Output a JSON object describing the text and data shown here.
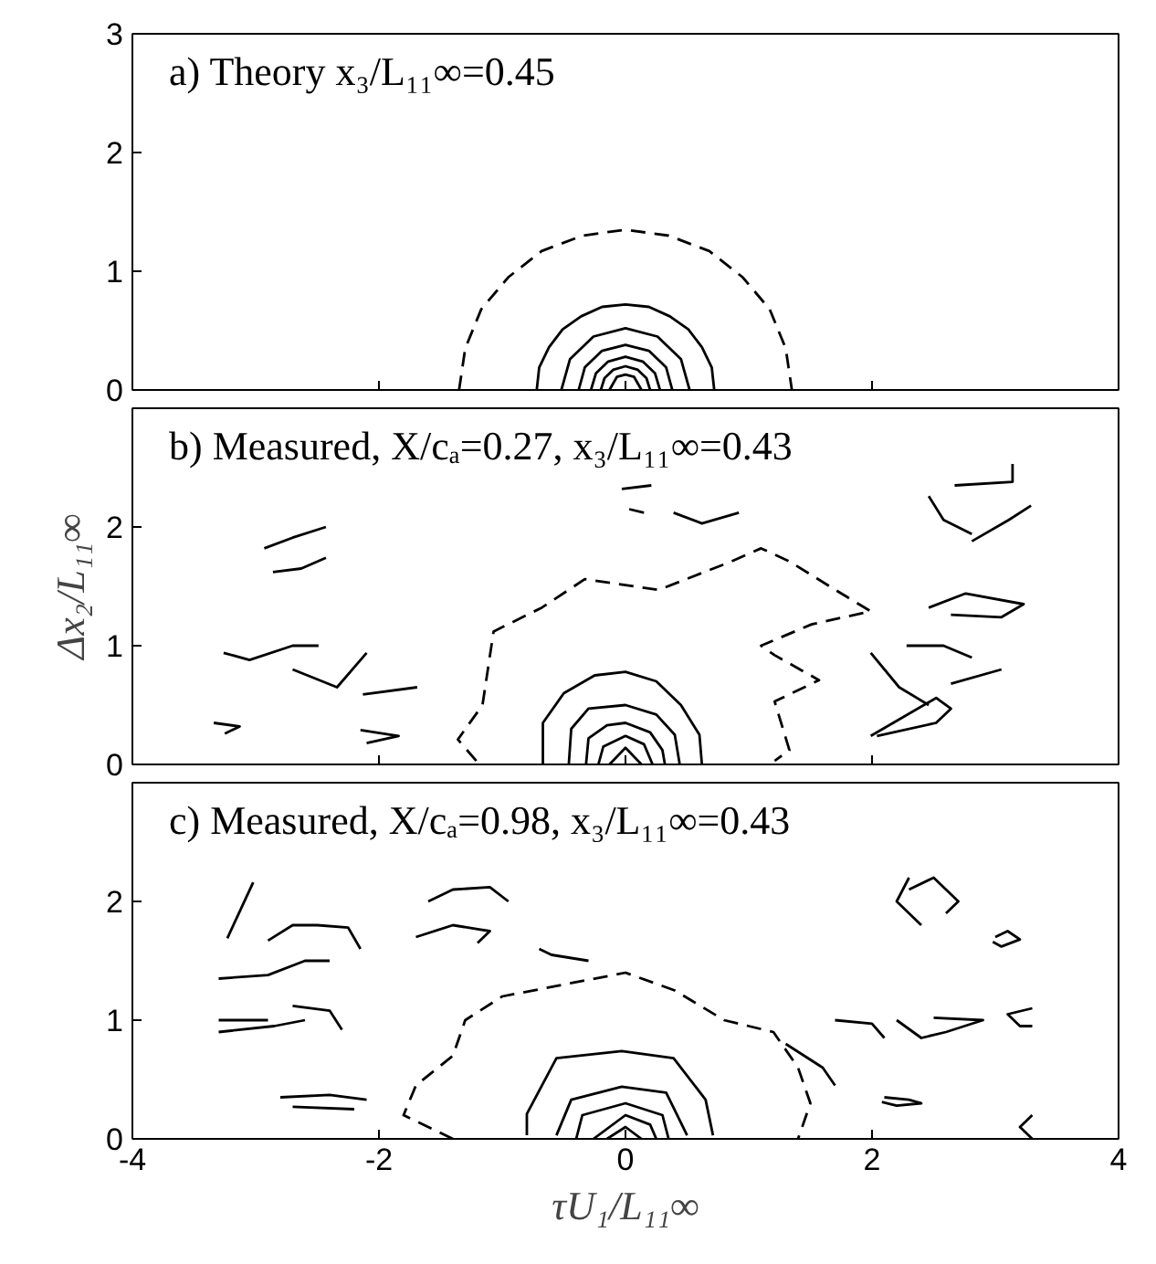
{
  "chart_data": [
    {
      "type": "line",
      "title": "a) Theory x₃/L₁₁∞=0.45",
      "xlim": [
        -4,
        4
      ],
      "xticks": [
        -4,
        -2,
        0,
        2,
        4
      ],
      "ylim": [
        0,
        3
      ],
      "yticks": [
        0,
        1,
        2,
        3
      ],
      "tick_labels": "y",
      "marker": "none",
      "grid": false,
      "series": [
        {
          "color": "#000000",
          "line_style": "dashed",
          "x": [
            -1.35,
            -1.3,
            -1.17,
            -0.95,
            -0.68,
            -0.35,
            0,
            0.35,
            0.68,
            0.95,
            1.17,
            1.3,
            1.35
          ],
          "values": [
            0,
            0.35,
            0.68,
            0.95,
            1.17,
            1.3,
            1.35,
            1.3,
            1.17,
            0.95,
            0.68,
            0.35,
            0
          ]
        },
        {
          "color": "#000000",
          "x": [
            -0.72,
            -0.7,
            -0.62,
            -0.51,
            -0.36,
            -0.19,
            0,
            0.19,
            0.36,
            0.51,
            0.62,
            0.7,
            0.72
          ],
          "values": [
            0,
            0.19,
            0.36,
            0.51,
            0.62,
            0.7,
            0.72,
            0.7,
            0.62,
            0.51,
            0.36,
            0.19,
            0
          ]
        },
        {
          "color": "#000000",
          "x": [
            -0.52,
            -0.45,
            -0.26,
            0,
            0.26,
            0.45,
            0.52
          ],
          "values": [
            0,
            0.26,
            0.45,
            0.52,
            0.45,
            0.26,
            0
          ]
        },
        {
          "color": "#000000",
          "x": [
            -0.38,
            -0.33,
            -0.19,
            0,
            0.19,
            0.33,
            0.38
          ],
          "values": [
            0,
            0.19,
            0.33,
            0.38,
            0.33,
            0.19,
            0
          ]
        },
        {
          "color": "#000000",
          "x": [
            -0.28,
            -0.24,
            -0.14,
            0,
            0.14,
            0.24,
            0.28
          ],
          "values": [
            0,
            0.14,
            0.24,
            0.28,
            0.24,
            0.14,
            0
          ]
        },
        {
          "color": "#000000",
          "x": [
            -0.2,
            -0.17,
            -0.1,
            0,
            0.1,
            0.17,
            0.2
          ],
          "values": [
            0,
            0.1,
            0.17,
            0.2,
            0.17,
            0.1,
            0
          ]
        },
        {
          "color": "#000000",
          "x": [
            -0.13,
            -0.07,
            0,
            0.07,
            0.13
          ],
          "values": [
            0,
            0.11,
            0.13,
            0.11,
            0
          ]
        }
      ]
    },
    {
      "type": "line",
      "title": "b) Measured, X/cₐ=0.27, x₃/L₁₁∞=0.43",
      "ylabel": "Δx₂/L₁₁∞",
      "xlim": [
        -4,
        4
      ],
      "xticks": [
        -4,
        -2,
        0,
        2,
        4
      ],
      "ylim": [
        0,
        3
      ],
      "yticks": [
        0,
        1,
        2
      ],
      "tick_labels": "y",
      "marker": "none",
      "grid": false,
      "series": [
        {
          "color": "#000000",
          "x": [
            -0.67,
            -0.67,
            -0.5,
            -0.25,
            0,
            0.25,
            0.45,
            0.6,
            0.62
          ],
          "values": [
            0,
            0.35,
            0.6,
            0.75,
            0.78,
            0.7,
            0.5,
            0.25,
            0
          ]
        },
        {
          "color": "#000000",
          "x": [
            -0.46,
            -0.44,
            -0.3,
            0,
            0.25,
            0.4,
            0.44
          ],
          "values": [
            0,
            0.3,
            0.47,
            0.5,
            0.42,
            0.25,
            0
          ]
        },
        {
          "color": "#000000",
          "x": [
            -0.32,
            -0.3,
            -0.15,
            0,
            0.2,
            0.3,
            0.32
          ],
          "values": [
            0,
            0.22,
            0.33,
            0.35,
            0.27,
            0.12,
            0
          ]
        },
        {
          "color": "#000000",
          "x": [
            -0.22,
            -0.18,
            0,
            0.15,
            0.22
          ],
          "values": [
            0,
            0.15,
            0.24,
            0.17,
            0
          ]
        },
        {
          "color": "#000000",
          "x": [
            -0.13,
            0,
            0.13
          ],
          "values": [
            0,
            0.14,
            0
          ]
        },
        {
          "color": "#000000",
          "line_style": "dashed",
          "x": [
            -1.21,
            -1.36,
            -1.16,
            -1.07,
            -0.68,
            -0.33,
            0.27,
            0.86,
            1.1,
            1.33,
            1.75,
            1.99,
            1.51,
            1.1,
            1.21,
            1.57,
            1.21,
            1.33,
            1.21
          ],
          "values": [
            0.03,
            0.21,
            0.5,
            1.12,
            1.32,
            1.56,
            1.47,
            1.71,
            1.82,
            1.71,
            1.44,
            1.29,
            1.18,
            1.0,
            0.92,
            0.71,
            0.53,
            0.12,
            0.03
          ]
        },
        {
          "color": "#000000",
          "x": [
            -2.93,
            -2.7,
            -2.43
          ],
          "values": [
            1.82,
            1.91,
            2.0
          ]
        },
        {
          "color": "#000000",
          "x": [
            -2.86,
            -2.63,
            -2.43
          ],
          "values": [
            1.62,
            1.65,
            1.74
          ]
        },
        {
          "color": "#000000",
          "x": [
            -3.26,
            -3.05,
            -2.7,
            -2.49
          ],
          "values": [
            0.94,
            0.88,
            1.0,
            1.0
          ]
        },
        {
          "color": "#000000",
          "x": [
            -2.7,
            -2.34,
            -2.1
          ],
          "values": [
            0.8,
            0.65,
            0.94
          ]
        },
        {
          "color": "#000000",
          "x": [
            -2.13,
            -1.69
          ],
          "values": [
            0.59,
            0.65
          ]
        },
        {
          "color": "#000000",
          "x": [
            -3.34,
            -3.13,
            -3.25
          ],
          "values": [
            0.35,
            0.32,
            0.26
          ]
        },
        {
          "color": "#000000",
          "x": [
            -2.15,
            -1.84,
            -2.1
          ],
          "values": [
            0.29,
            0.24,
            0.18
          ]
        },
        {
          "color": "#000000",
          "x": [
            2.67,
            3.14,
            3.14
          ],
          "values": [
            2.35,
            2.38,
            2.53
          ]
        },
        {
          "color": "#000000",
          "x": [
            2.46,
            2.58,
            2.81
          ],
          "values": [
            2.26,
            2.06,
            1.94
          ]
        },
        {
          "color": "#000000",
          "x": [
            2.81,
            3.11,
            3.29
          ],
          "values": [
            1.88,
            2.06,
            2.18
          ]
        },
        {
          "color": "#000000",
          "x": [
            2.46,
            2.76,
            3.23,
            3.05,
            2.64
          ],
          "values": [
            1.32,
            1.44,
            1.35,
            1.24,
            1.26
          ]
        },
        {
          "color": "#000000",
          "x": [
            2.28,
            2.58,
            2.81
          ],
          "values": [
            1.0,
            1.0,
            0.9
          ]
        },
        {
          "color": "#000000",
          "x": [
            1.99,
            2.22,
            2.46
          ],
          "values": [
            0.94,
            0.65,
            0.5
          ]
        },
        {
          "color": "#000000",
          "x": [
            2.64,
            3.05
          ],
          "values": [
            0.68,
            0.8
          ]
        },
        {
          "color": "#000000",
          "x": [
            1.99,
            2.52,
            2.64,
            2.52,
            2.04
          ],
          "values": [
            0.24,
            0.56,
            0.47,
            0.35,
            0.24
          ]
        },
        {
          "color": "#000000",
          "x": [
            -0.03,
            0.21
          ],
          "values": [
            2.32,
            2.35
          ]
        },
        {
          "color": "#000000",
          "x": [
            0.03,
            0.15
          ],
          "values": [
            2.15,
            2.12
          ]
        },
        {
          "color": "#000000",
          "x": [
            0.39,
            0.62,
            0.92
          ],
          "values": [
            2.12,
            2.03,
            2.12
          ]
        }
      ]
    },
    {
      "type": "line",
      "title": "c) Measured, X/cₐ=0.98, x₃/L₁₁∞=0.43",
      "xlabel": "τU₁/L₁₁∞",
      "xlim": [
        -4,
        4
      ],
      "xticks": [
        -4,
        -2,
        0,
        2,
        4
      ],
      "ylim": [
        0,
        3
      ],
      "yticks": [
        0,
        1,
        2
      ],
      "marker": "none",
      "grid": false,
      "series": [
        {
          "color": "#000000",
          "x": [
            -0.8,
            -0.8,
            -0.56,
            -0.03,
            0.39,
            0.65,
            0.71
          ],
          "values": [
            0.03,
            0.21,
            0.68,
            0.74,
            0.68,
            0.33,
            0.03
          ]
        },
        {
          "color": "#000000",
          "x": [
            -0.56,
            -0.44,
            -0.03,
            0.33,
            0.5
          ],
          "values": [
            0.03,
            0.33,
            0.44,
            0.39,
            0.03
          ]
        },
        {
          "color": "#000000",
          "x": [
            -0.4,
            -0.35,
            0,
            0.3,
            0.35
          ],
          "values": [
            0,
            0.2,
            0.3,
            0.2,
            0
          ]
        },
        {
          "color": "#000000",
          "x": [
            -0.26,
            0,
            0.2,
            0.25
          ],
          "values": [
            0,
            0.2,
            0.12,
            0
          ]
        },
        {
          "color": "#000000",
          "x": [
            -0.15,
            0,
            0.13
          ],
          "values": [
            0,
            0.1,
            0
          ]
        },
        {
          "color": "#000000",
          "line_style": "dashed",
          "x": [
            -1.4,
            -1.8,
            -1.7,
            -1.4,
            -1.3,
            -1.0,
            -0.5,
            0,
            0.4,
            0.8,
            1.2,
            1.4,
            1.5,
            1.4
          ],
          "values": [
            0,
            0.2,
            0.45,
            0.7,
            1.0,
            1.2,
            1.3,
            1.4,
            1.25,
            1.0,
            0.9,
            0.6,
            0.3,
            0
          ]
        },
        {
          "color": "#000000",
          "x": [
            -3.3,
            -2.9,
            -2.6,
            -2.4
          ],
          "values": [
            1.35,
            1.38,
            1.5,
            1.5
          ]
        },
        {
          "color": "#000000",
          "x": [
            -3.3,
            -2.9
          ],
          "values": [
            1.0,
            1.0
          ]
        },
        {
          "color": "#000000",
          "x": [
            -3.3,
            -2.85,
            -2.6
          ],
          "values": [
            0.9,
            0.95,
            1.0
          ]
        },
        {
          "color": "#000000",
          "x": [
            -2.7,
            -2.4,
            -2.3
          ],
          "values": [
            1.12,
            1.08,
            0.92
          ]
        },
        {
          "color": "#000000",
          "x": [
            -3.23,
            -3.02
          ],
          "values": [
            1.69,
            2.16
          ]
        },
        {
          "color": "#000000",
          "x": [
            -2.9,
            -2.7,
            -2.5,
            -2.25,
            -2.15
          ],
          "values": [
            1.67,
            1.8,
            1.8,
            1.78,
            1.6
          ]
        },
        {
          "color": "#000000",
          "x": [
            -2.8,
            -2.4,
            -2.1
          ],
          "values": [
            0.35,
            0.37,
            0.33
          ]
        },
        {
          "color": "#000000",
          "x": [
            -2.7,
            -2.2
          ],
          "values": [
            0.27,
            0.25
          ]
        },
        {
          "color": "#000000",
          "x": [
            -1.6,
            -1.4,
            -1.1,
            -0.95
          ],
          "values": [
            2.0,
            2.1,
            2.12,
            2.0
          ]
        },
        {
          "color": "#000000",
          "x": [
            -1.7,
            -1.4,
            -1.1,
            -1.2
          ],
          "values": [
            1.7,
            1.8,
            1.75,
            1.65
          ]
        },
        {
          "color": "#000000",
          "x": [
            -0.7,
            -0.6,
            -0.3
          ],
          "values": [
            1.6,
            1.55,
            1.5
          ]
        },
        {
          "color": "#000000",
          "x": [
            2.3,
            2.5,
            2.7,
            2.6
          ],
          "values": [
            2.1,
            2.2,
            2.0,
            1.9
          ]
        },
        {
          "color": "#000000",
          "x": [
            2.3,
            2.2,
            2.4
          ],
          "values": [
            2.2,
            2.0,
            1.8
          ]
        },
        {
          "color": "#000000",
          "x": [
            3.0,
            3.1,
            3.2,
            3.05,
            2.98
          ],
          "values": [
            1.7,
            1.75,
            1.68,
            1.62,
            1.66
          ]
        },
        {
          "color": "#000000",
          "x": [
            2.2,
            2.4,
            2.6,
            2.9,
            2.5
          ],
          "values": [
            1.0,
            0.85,
            0.9,
            1.0,
            1.02
          ]
        },
        {
          "color": "#000000",
          "x": [
            2.1,
            2.3,
            2.4,
            2.2,
            2.08
          ],
          "values": [
            0.35,
            0.33,
            0.3,
            0.28,
            0.31
          ]
        },
        {
          "color": "#000000",
          "x": [
            3.3,
            3.2,
            3.3
          ],
          "values": [
            0.2,
            0.1,
            0.0
          ]
        },
        {
          "color": "#000000",
          "x": [
            3.3,
            3.1,
            3.2,
            3.3
          ],
          "values": [
            1.1,
            1.05,
            0.95,
            0.95
          ]
        },
        {
          "color": "#000000",
          "x": [
            1.7,
            2.0,
            2.1
          ],
          "values": [
            1.0,
            0.97,
            0.85
          ]
        },
        {
          "color": "#000000",
          "x": [
            1.3,
            1.6,
            1.7
          ],
          "values": [
            0.8,
            0.6,
            0.45
          ]
        }
      ]
    }
  ]
}
